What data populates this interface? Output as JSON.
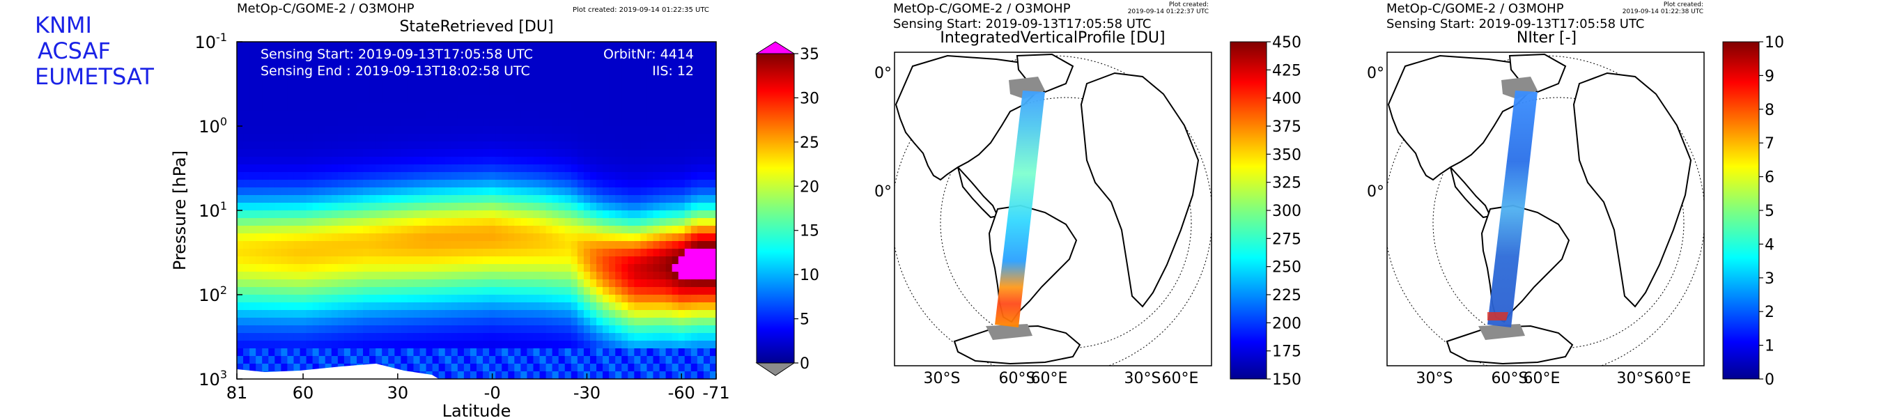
{
  "logo": {
    "lines": [
      "KNMI",
      "ACSAF",
      "EUMETSAT"
    ]
  },
  "chart_data": [
    {
      "type": "heatmap",
      "header": "MetOp-C/GOME-2 / O3MOHP",
      "plot_created": "Plot created: 2019-09-14 01:22:35 UTC",
      "title": "StateRetrieved [DU]",
      "xlabel": "Latitude",
      "ylabel": "Pressure [hPa]",
      "x_ticks": [
        "81",
        "60",
        "30",
        "-0",
        "-30",
        "-60",
        "-71"
      ],
      "x_range": [
        81,
        -71
      ],
      "y_scale": "log",
      "y_range": [
        1000,
        0.1
      ],
      "y_ticks": [
        {
          "value": 0.1,
          "base": "10",
          "exp": "-1"
        },
        {
          "value": 1,
          "base": "10",
          "exp": "0"
        },
        {
          "value": 10,
          "base": "10",
          "exp": "1"
        },
        {
          "value": 100,
          "base": "10",
          "exp": "2"
        },
        {
          "value": 1000,
          "base": "10",
          "exp": "3"
        }
      ],
      "annotations": {
        "sensing_start": "Sensing Start: 2019-09-13T17:05:58 UTC",
        "sensing_end": "Sensing End  : 2019-09-13T18:02:58 UTC",
        "orbit": "OrbitNr: 4414",
        "iis": "IIS: 12"
      },
      "colorbar": {
        "ticks": [
          "35",
          "30",
          "25",
          "20",
          "15",
          "10",
          "5",
          "0"
        ],
        "range": [
          0,
          35
        ],
        "over_color": "#ff00ff",
        "under_color": "#8c8c8c"
      },
      "profile": {
        "latitudes": [
          81,
          60,
          40,
          20,
          0,
          -15,
          -25,
          -35,
          -45,
          -55,
          -60,
          -65,
          -71
        ],
        "peak_pressure_hpa": [
          30,
          30,
          25,
          22,
          20,
          22,
          25,
          40,
          50,
          45,
          45,
          40,
          40
        ],
        "peak_value_du": [
          21,
          22,
          22,
          23,
          23,
          22,
          21,
          26,
          30,
          32,
          34,
          36,
          36
        ]
      }
    },
    {
      "type": "map",
      "header": "MetOp-C/GOME-2 / O3MOHP",
      "sensing_start": "Sensing Start: 2019-09-13T17:05:58 UTC",
      "plot_created": [
        "Plot created:",
        "2019-09-14 01:22:37 UTC"
      ],
      "title": "IntegratedVerticalProfile [DU]",
      "lat_labels": [
        "0°",
        "0°"
      ],
      "lon_labels": [
        "30°S",
        "60°S",
        "60°E",
        "30°S",
        "60°E"
      ],
      "colorbar": {
        "ticks": [
          "450",
          "425",
          "400",
          "375",
          "350",
          "325",
          "300",
          "275",
          "250",
          "225",
          "200",
          "175",
          "150"
        ],
        "range": [
          150,
          450
        ]
      }
    },
    {
      "type": "map",
      "header": "MetOp-C/GOME-2 / O3MOHP",
      "sensing_start": "Sensing Start: 2019-09-13T17:05:58 UTC",
      "plot_created": [
        "Plot created:",
        "2019-09-14 01:22:38 UTC"
      ],
      "title": "NIter [-]",
      "lat_labels": [
        "0°",
        "0°"
      ],
      "lon_labels": [
        "30°S",
        "60°S",
        "60°E",
        "30°S",
        "60°E"
      ],
      "colorbar": {
        "ticks": [
          "10",
          "9",
          "8",
          "7",
          "6",
          "5",
          "4",
          "3",
          "2",
          "1",
          "0"
        ],
        "range": [
          0,
          10
        ]
      }
    }
  ]
}
